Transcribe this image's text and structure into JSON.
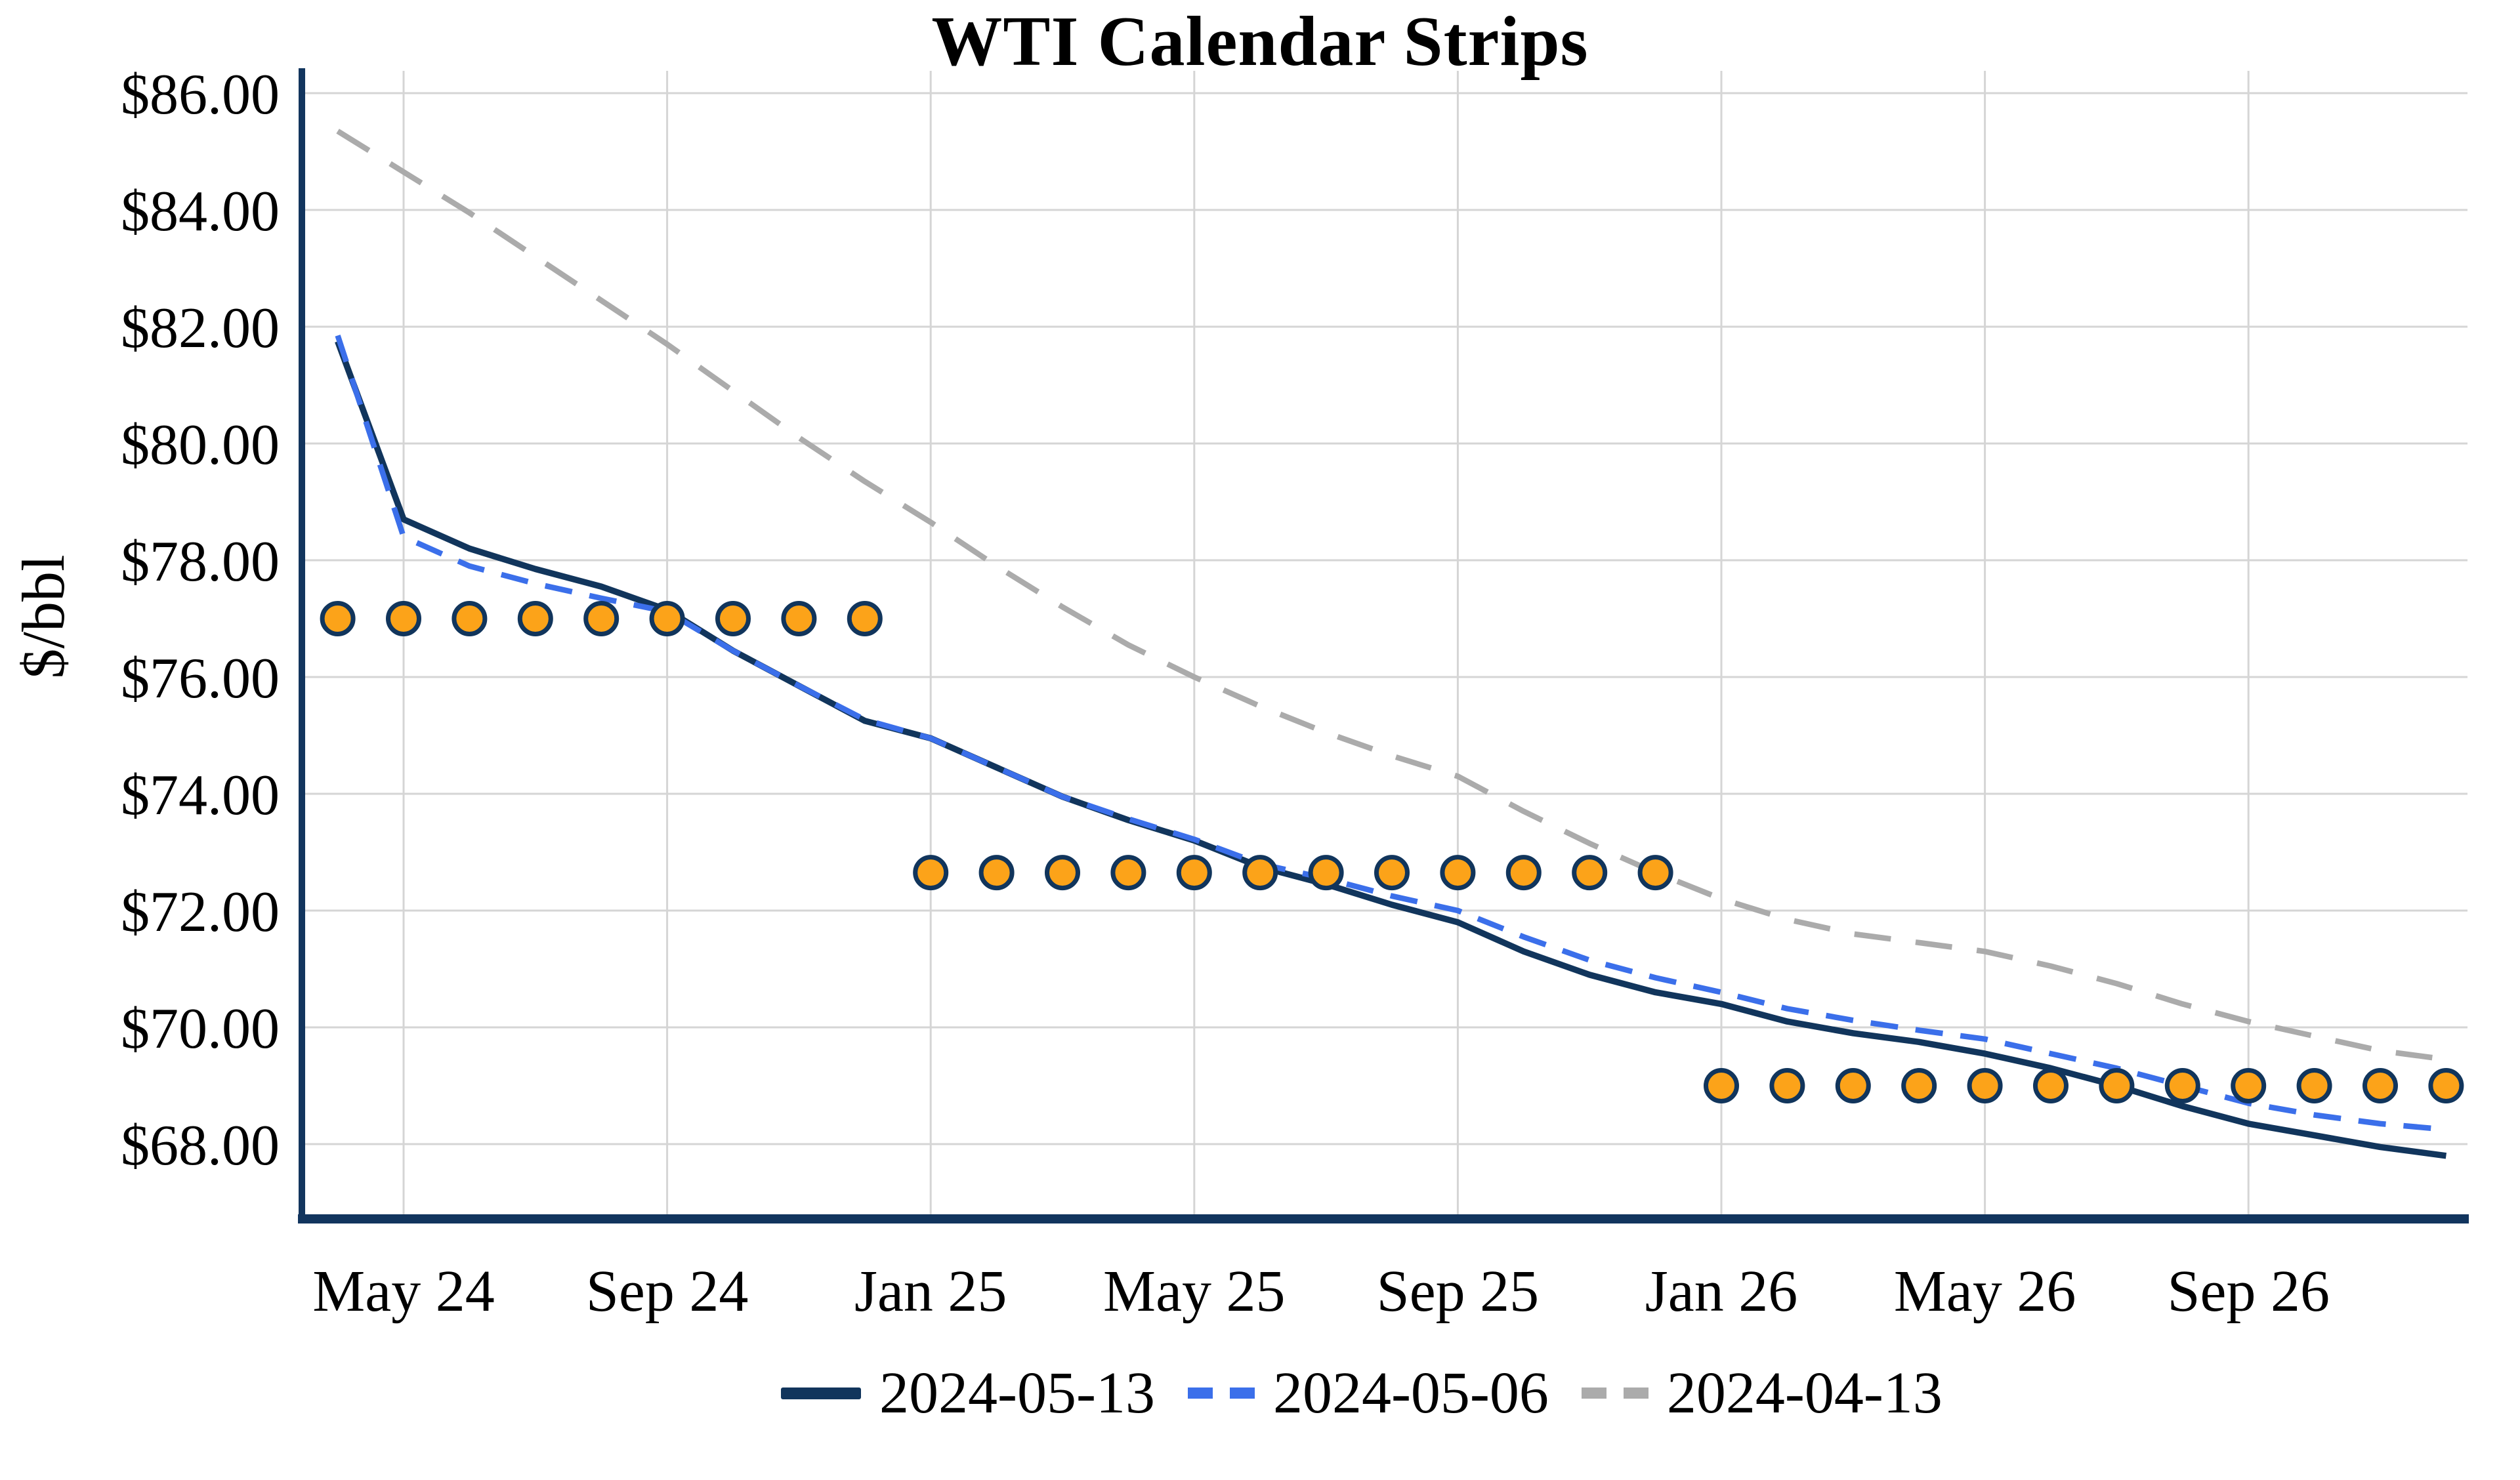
{
  "title": "WTI Calendar Strips",
  "y_axis_label": "$/bbl",
  "legend": {
    "position": "bottom",
    "items": [
      {
        "label": "2024-05-13",
        "color": "#11355C",
        "style": "solid"
      },
      {
        "label": "2024-05-06",
        "color": "#3B6FEA",
        "style": "dashed"
      },
      {
        "label": "2024-04-13",
        "color": "#ABABAB",
        "style": "dashed"
      }
    ]
  },
  "colors": {
    "navy_line": "#11355C",
    "blue_line": "#3B6FEA",
    "gray_line": "#ABABAB",
    "marker_fill": "#FCA319",
    "marker_stroke": "#11355C",
    "gridline": "#D5D5D5",
    "axis": "#12355E",
    "text": "#000000",
    "background": "#FFFFFF"
  },
  "chart_data": {
    "type": "line",
    "title": "WTI Calendar Strips",
    "xlabel": "",
    "ylabel": "$/bbl",
    "grid": true,
    "legend_position": "bottom",
    "ylim": [
      66.7,
      86.4
    ],
    "y_ticks": [
      {
        "value": 86,
        "label": "$86.00"
      },
      {
        "value": 84,
        "label": "$84.00"
      },
      {
        "value": 82,
        "label": "$82.00"
      },
      {
        "value": 80,
        "label": "$80.00"
      },
      {
        "value": 78,
        "label": "$78.00"
      },
      {
        "value": 76,
        "label": "$76.00"
      },
      {
        "value": 74,
        "label": "$74.00"
      },
      {
        "value": 72,
        "label": "$72.00"
      },
      {
        "value": 70,
        "label": "$70.00"
      },
      {
        "value": 68,
        "label": "$68.00"
      }
    ],
    "categories": [
      "Apr 24",
      "May 24",
      "Jun 24",
      "Jul 24",
      "Aug 24",
      "Sep 24",
      "Oct 24",
      "Nov 24",
      "Dec 24",
      "Jan 25",
      "Feb 25",
      "Mar 25",
      "Apr 25",
      "May 25",
      "Jun 25",
      "Jul 25",
      "Aug 25",
      "Sep 25",
      "Oct 25",
      "Nov 25",
      "Dec 25",
      "Jan 26",
      "Feb 26",
      "Mar 26",
      "Apr 26",
      "May 26",
      "Jun 26",
      "Jul 26",
      "Aug 26",
      "Sep 26",
      "Oct 26",
      "Nov 26",
      "Dec 26"
    ],
    "x_ticks": [
      {
        "month_index": 1,
        "label": "May 24"
      },
      {
        "month_index": 5,
        "label": "Sep 24"
      },
      {
        "month_index": 9,
        "label": "Jan 25"
      },
      {
        "month_index": 13,
        "label": "May 25"
      },
      {
        "month_index": 17,
        "label": "Sep 25"
      },
      {
        "month_index": 21,
        "label": "Jan 26"
      },
      {
        "month_index": 25,
        "label": "May 26"
      },
      {
        "month_index": 29,
        "label": "Sep 26"
      }
    ],
    "series": [
      {
        "name": "2024-04-13",
        "style": "dashed",
        "color": "#ABABAB",
        "values": [
          85.35,
          84.65,
          83.95,
          83.2,
          82.45,
          81.7,
          80.9,
          80.1,
          79.35,
          78.65,
          77.9,
          77.2,
          76.55,
          76.0,
          75.5,
          75.05,
          74.65,
          74.3,
          73.7,
          73.15,
          72.65,
          72.2,
          71.85,
          71.6,
          71.45,
          71.3,
          71.05,
          70.75,
          70.4,
          70.1,
          69.85,
          69.6,
          69.45
        ]
      },
      {
        "name": "2024-05-13",
        "style": "solid",
        "color": "#11355C",
        "values": [
          81.75,
          78.7,
          78.2,
          77.85,
          77.55,
          77.15,
          76.45,
          75.85,
          75.25,
          74.95,
          74.45,
          73.95,
          73.55,
          73.2,
          72.75,
          72.45,
          72.1,
          71.8,
          71.3,
          70.9,
          70.6,
          70.4,
          70.1,
          69.9,
          69.75,
          69.55,
          69.3,
          69.0,
          68.65,
          68.35,
          68.15,
          67.95,
          67.8
        ]
      },
      {
        "name": "2024-05-06",
        "style": "dashed",
        "color": "#3B6FEA",
        "values": [
          81.85,
          78.4,
          77.9,
          77.6,
          77.35,
          77.12,
          76.45,
          75.85,
          75.27,
          74.95,
          74.45,
          73.95,
          73.57,
          73.22,
          72.8,
          72.55,
          72.25,
          72.0,
          71.55,
          71.15,
          70.85,
          70.6,
          70.32,
          70.12,
          69.95,
          69.8,
          69.55,
          69.3,
          69.0,
          68.7,
          68.5,
          68.35,
          68.25
        ]
      }
    ],
    "calendar_strips": {
      "marker": "circle",
      "fill": "#FCA319",
      "stroke": "#11355C",
      "strips": [
        {
          "price": 77.0,
          "from": "Apr 24",
          "to": "Dec 24",
          "month_start": 0,
          "month_end": 8
        },
        {
          "price": 72.65,
          "from": "Jan 25",
          "to": "Dec 25",
          "month_start": 9,
          "month_end": 20
        },
        {
          "price": 69.0,
          "from": "Jan 26",
          "to": "Dec 26",
          "month_start": 21,
          "month_end": 32
        }
      ]
    }
  }
}
